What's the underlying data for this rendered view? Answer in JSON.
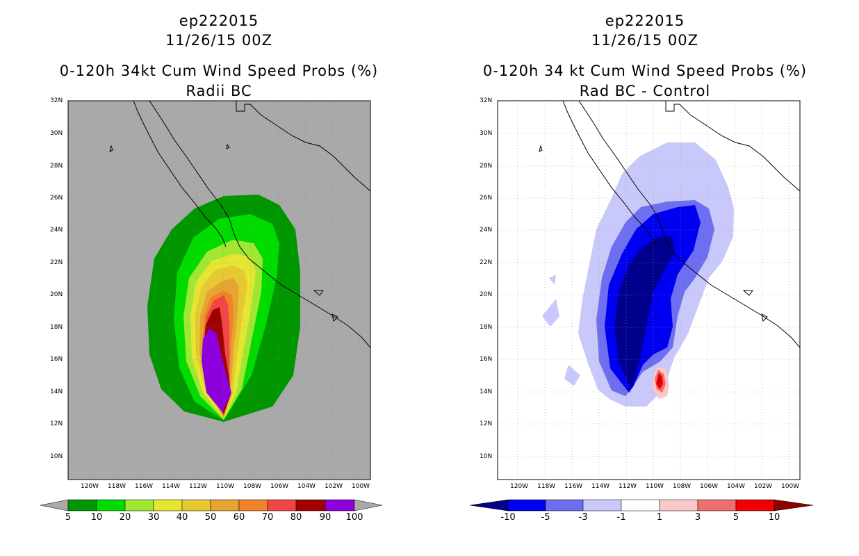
{
  "left": {
    "storm_id": "ep222015",
    "datetime": "11/26/15 00Z",
    "title": "0-120h 34kt Cum Wind Speed Probs (%)",
    "subtitle": "Radii BC",
    "legend_labels": [
      "5",
      "10",
      "20",
      "30",
      "40",
      "50",
      "60",
      "70",
      "80",
      "90",
      "100"
    ],
    "legend_colors": [
      "#009600",
      "#00dc00",
      "#a0e632",
      "#e6e632",
      "#e6c832",
      "#e6a532",
      "#f08228",
      "#f04646",
      "#a00000",
      "#8c00dc"
    ]
  },
  "right": {
    "storm_id": "ep222015",
    "datetime": "11/26/15 00Z",
    "title": "0-120h 34 kt Cum Wind Speed Probs (%)",
    "subtitle": "Rad BC - Control",
    "legend_labels": [
      "-10",
      "-5",
      "-3",
      "-1",
      "1",
      "3",
      "5",
      "10"
    ],
    "legend_colors": [
      "#00008c",
      "#0000f0",
      "#6e6ef0",
      "#c8c8fa",
      "#ffffff",
      "#fac8c8",
      "#f06e6e",
      "#f00000",
      "#8c0000"
    ]
  },
  "lat_labels": [
    "32N",
    "30N",
    "28N",
    "26N",
    "24N",
    "22N",
    "20N",
    "18N",
    "16N",
    "14N",
    "12N",
    "10N"
  ],
  "lon_labels": [
    "120W",
    "118W",
    "116W",
    "114W",
    "112W",
    "110W",
    "108W",
    "106W",
    "104W",
    "102W",
    "100W"
  ]
}
